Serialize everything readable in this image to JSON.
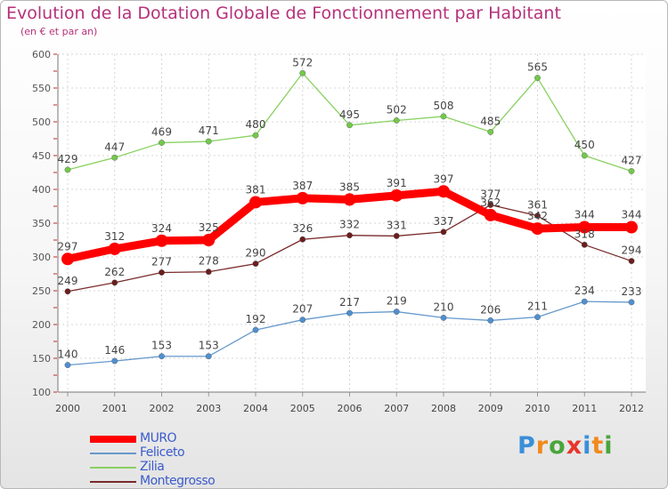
{
  "title": "Evolution de la Dotation Globale de Fonctionnement par Habitant",
  "subtitle": "(en € et par an)",
  "logo": {
    "text": "Proxiti",
    "letters": [
      "P",
      "r",
      "o",
      "x",
      "i",
      "t",
      "i"
    ],
    "colors": [
      "#3a8fd9",
      "#f08a1e",
      "#4aa53b",
      "#e8362a",
      "#3a8fd9",
      "#f08a1e",
      "#4aa53b"
    ]
  },
  "chart_data": {
    "type": "line",
    "title": "Evolution de la Dotation Globale de Fonctionnement par Habitant",
    "subtitle": "(en € et par an)",
    "xlabel": "",
    "ylabel": "",
    "x": [
      "2000",
      "2001",
      "2002",
      "2003",
      "2004",
      "2005",
      "2006",
      "2007",
      "2008",
      "2009",
      "2010",
      "2011",
      "2012"
    ],
    "ylim": [
      100,
      600
    ],
    "yticks": [
      100,
      150,
      200,
      250,
      300,
      350,
      400,
      450,
      500,
      550,
      600
    ],
    "grid": true,
    "legend_position": "bottom-left",
    "series": [
      {
        "name": "MURO",
        "color": "#ff0000",
        "marker_color": "#ff0000",
        "emphasis": true,
        "values": [
          297,
          312,
          324,
          325,
          381,
          387,
          385,
          391,
          397,
          362,
          342,
          344,
          344
        ]
      },
      {
        "name": "Feliceto",
        "color": "#6699cc",
        "marker_color": "#4f8fd0",
        "emphasis": false,
        "values": [
          140,
          146,
          153,
          153,
          192,
          207,
          217,
          219,
          210,
          206,
          211,
          234,
          233
        ]
      },
      {
        "name": "Zilia",
        "color": "#88d160",
        "marker_color": "#72c94a",
        "emphasis": false,
        "values": [
          429,
          447,
          469,
          471,
          480,
          572,
          495,
          502,
          508,
          485,
          565,
          450,
          427
        ]
      },
      {
        "name": "Montegrosso",
        "color": "#7a2a2a",
        "marker_color": "#6b1d1d",
        "emphasis": false,
        "values": [
          249,
          262,
          277,
          278,
          290,
          326,
          332,
          331,
          337,
          377,
          361,
          318,
          294
        ]
      }
    ]
  }
}
